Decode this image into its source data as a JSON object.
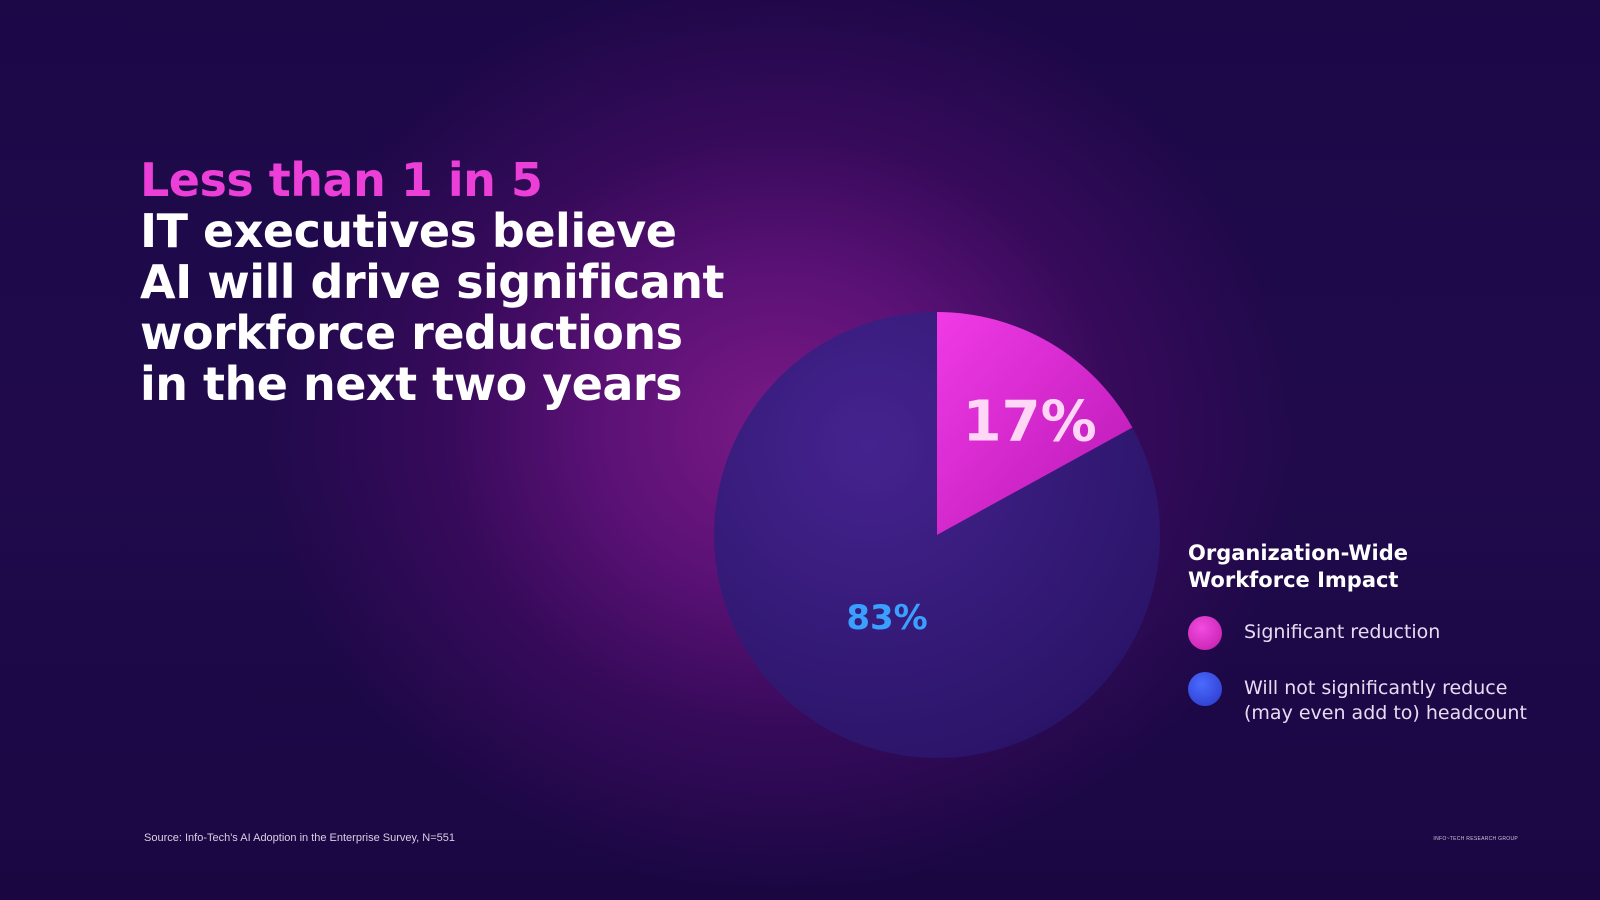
{
  "headline": {
    "accent": "Less than 1 in 5",
    "lines": [
      "IT executives believe",
      "AI will drive significant",
      "workforce reductions",
      "in the next two years"
    ]
  },
  "legend": {
    "title_line1": "Organization-Wide",
    "title_line2": "Workforce Impact",
    "items": [
      {
        "label": "Significant reduction",
        "color": "#e03ad0"
      },
      {
        "label": "Will not significantly reduce\n(may even add to) headcount",
        "color": "#3a55f0"
      }
    ]
  },
  "chart_data": {
    "type": "pie",
    "categories": [
      "Significant reduction",
      "Will not significantly reduce (may even add to) headcount"
    ],
    "values": [
      17,
      83
    ],
    "data_labels": [
      "17%",
      "83%"
    ],
    "colors": [
      "#e332d6",
      "#38218a"
    ],
    "label_colors": [
      "#ffd6f6",
      "#3aa0ff"
    ],
    "title": "Organization-Wide Workforce Impact",
    "start_angle": "12 o'clock",
    "direction": "clockwise",
    "legend": "right"
  },
  "footer": {
    "source": "Source: Info-Tech's AI Adoption in the Enterprise Survey, N=551",
    "brand": "INFO~TECH RESEARCH GROUP"
  }
}
